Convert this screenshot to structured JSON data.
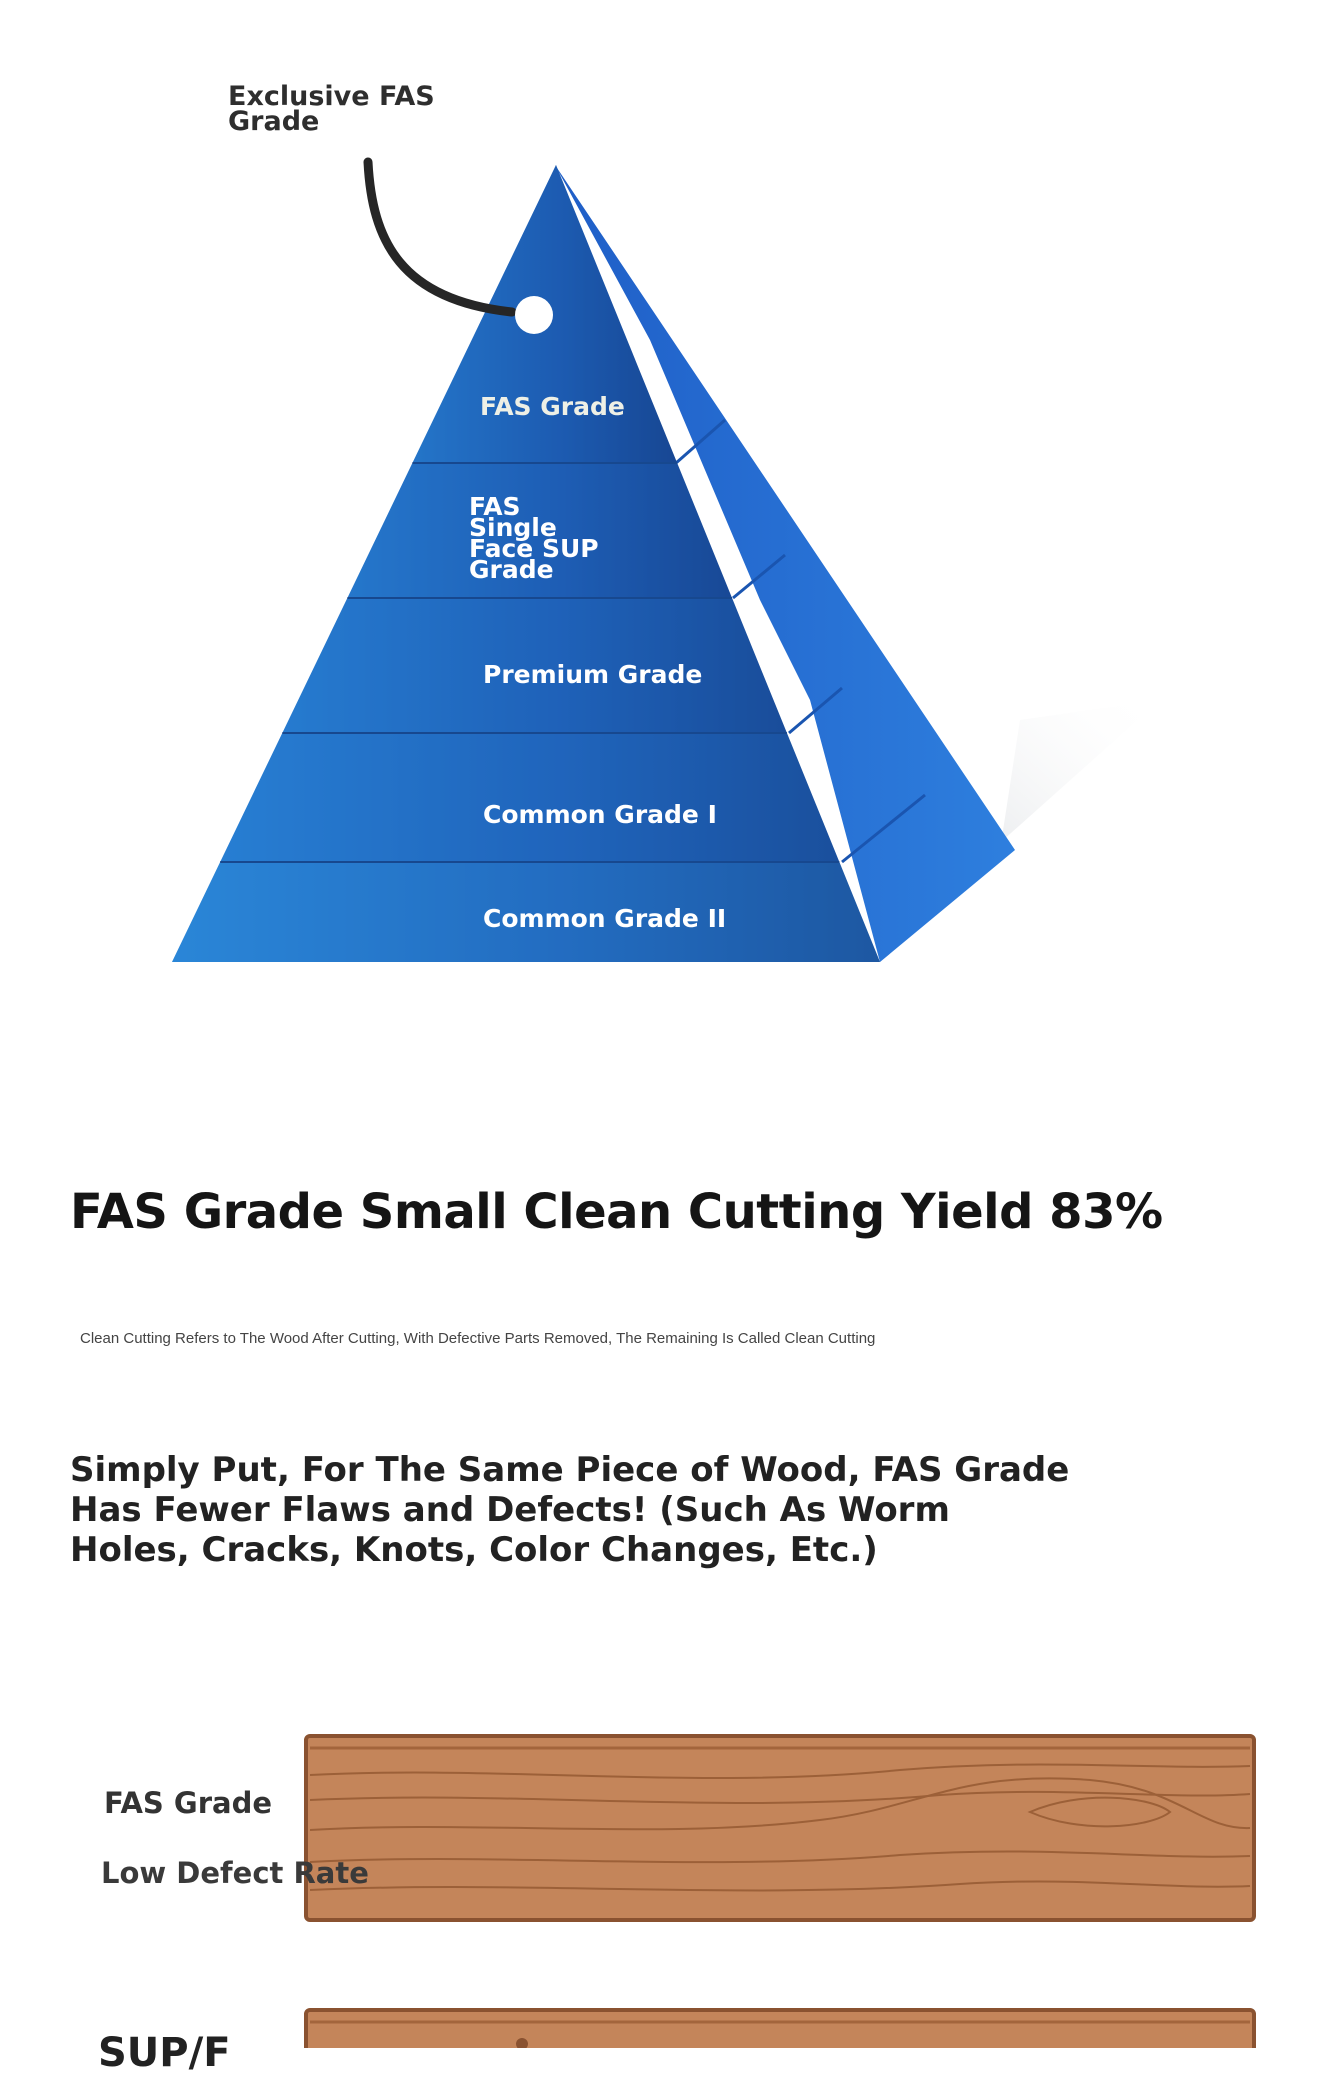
{
  "pyramid": {
    "top_label": "Exclusive FAS Grade",
    "layers": [
      {
        "label": "FAS Grade"
      },
      {
        "label": "FAS Single Face SUP Grade"
      },
      {
        "label": "Premium Grade"
      },
      {
        "label": "Common Grade I"
      },
      {
        "label": "Common Grade II"
      }
    ]
  },
  "headline": "FAS Grade Small Clean Cutting Yield 83%",
  "subnote": "Clean Cutting Refers to The Wood After Cutting, With Defective Parts Removed, The Remaining Is Called Clean Cutting",
  "statement": "Simply Put, For The Same Piece of Wood, FAS Grade Has Fewer Flaws and Defects! (Such As Worm Holes, Cracks, Knots, Color Changes, Etc.)",
  "boards": [
    {
      "grade": "FAS Grade",
      "caption": "Low Defect Rate"
    },
    {
      "grade": "SUP/F"
    }
  ],
  "colors": {
    "pyramid_dark": "#1a4f9c",
    "pyramid_light": "#2a86d8",
    "wood": "#c4855a",
    "wood_edge": "#8a5230"
  }
}
